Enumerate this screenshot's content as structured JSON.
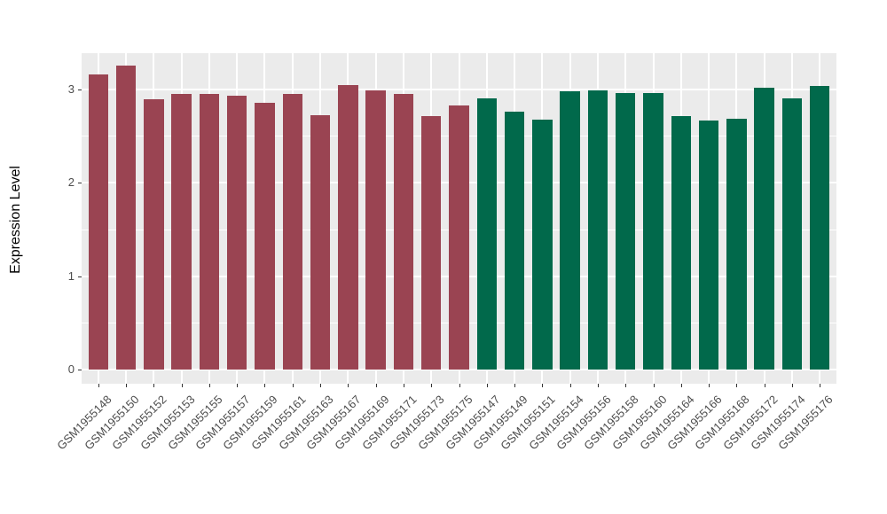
{
  "chart_data": {
    "type": "bar",
    "title": "",
    "xlabel": "",
    "ylabel": "Expression Level",
    "ylim": [
      0,
      3.39
    ],
    "yticks": [
      0,
      1,
      2,
      3
    ],
    "grid": true,
    "legend": false,
    "panel_background": "#EBEBEB",
    "grid_color": "#FFFFFF",
    "group_colors": [
      "#9A4452",
      "#01694B"
    ],
    "categories": [
      "GSM1955148",
      "GSM1955150",
      "GSM1955152",
      "GSM1955153",
      "GSM1955155",
      "GSM1955157",
      "GSM1955159",
      "GSM1955161",
      "GSM1955163",
      "GSM1955167",
      "GSM1955169",
      "GSM1955171",
      "GSM1955173",
      "GSM1955175",
      "GSM1955147",
      "GSM1955149",
      "GSM1955151",
      "GSM1955154",
      "GSM1955156",
      "GSM1955158",
      "GSM1955160",
      "GSM1955164",
      "GSM1955166",
      "GSM1955168",
      "GSM1955172",
      "GSM1955174",
      "GSM1955176"
    ],
    "values": [
      3.16,
      3.26,
      2.9,
      2.95,
      2.95,
      2.93,
      2.86,
      2.95,
      2.73,
      3.05,
      2.99,
      2.95,
      2.72,
      2.83,
      2.91,
      2.76,
      2.68,
      2.98,
      2.99,
      2.96,
      2.96,
      2.72,
      2.67,
      2.69,
      3.02,
      2.91,
      3.04
    ],
    "groups": [
      0,
      0,
      0,
      0,
      0,
      0,
      0,
      0,
      0,
      0,
      0,
      0,
      0,
      0,
      1,
      1,
      1,
      1,
      1,
      1,
      1,
      1,
      1,
      1,
      1,
      1,
      1
    ]
  }
}
